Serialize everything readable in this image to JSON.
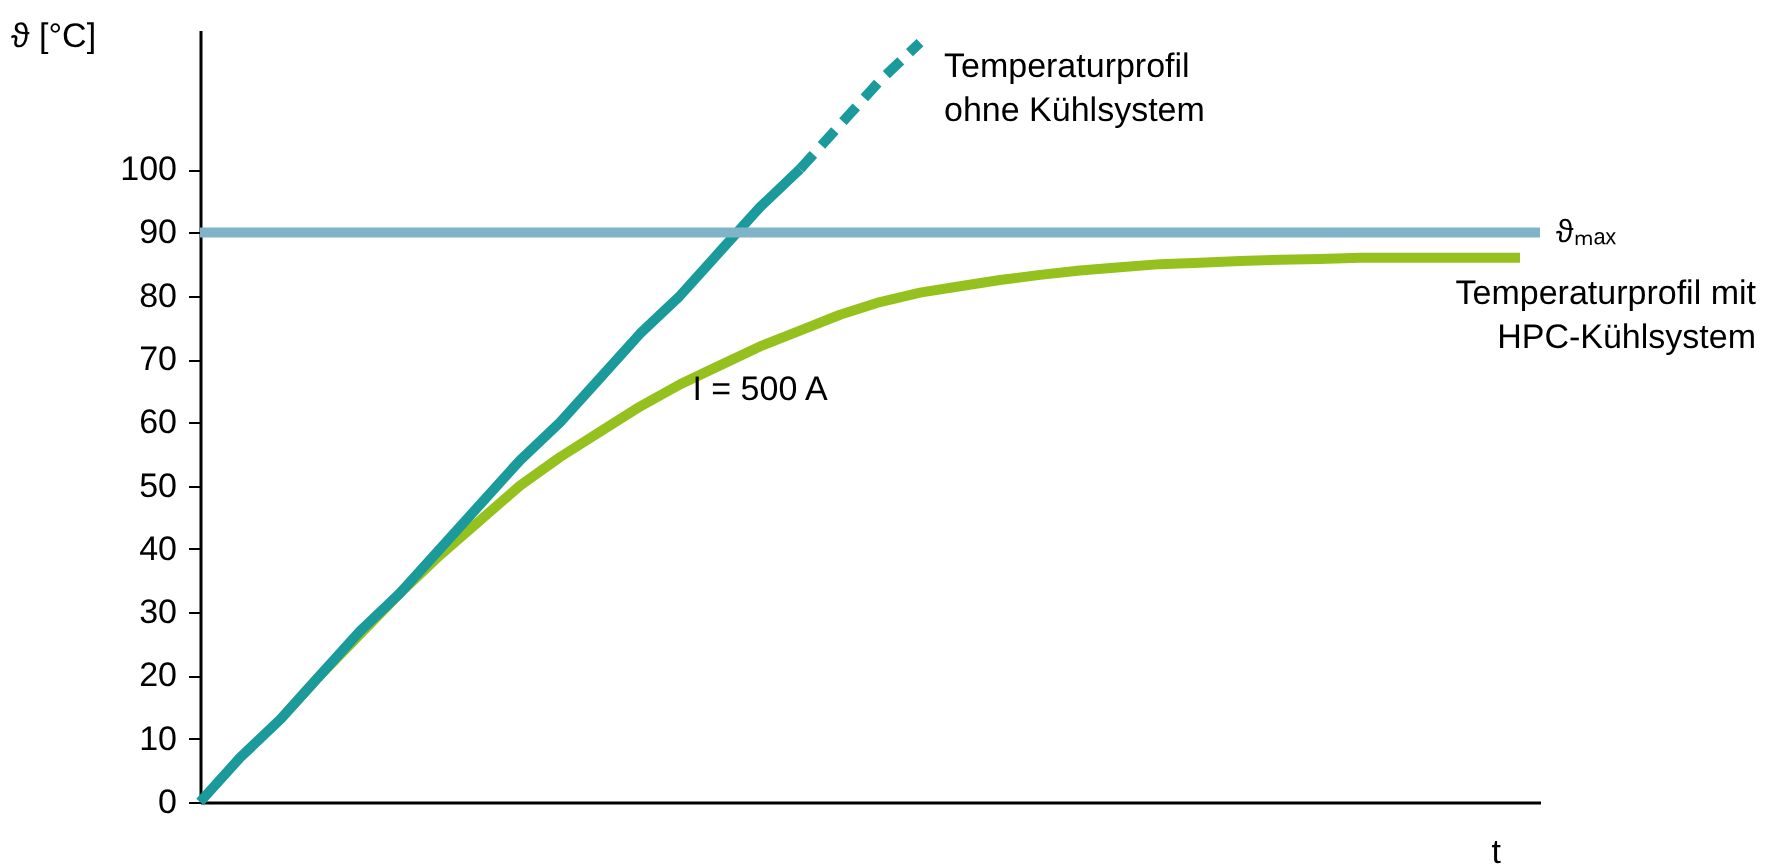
{
  "chart_data": {
    "type": "line",
    "ylabel": "ϑ [°C]",
    "xlabel": "t",
    "categories": [
      null,
      null,
      null,
      null,
      null,
      null,
      null,
      null,
      null,
      null,
      null,
      null,
      null,
      null,
      null,
      null,
      null,
      null,
      null,
      null,
      null,
      null,
      null,
      null,
      null,
      null,
      null,
      null,
      null,
      null,
      null,
      null,
      null,
      null
    ],
    "ylim": [
      0,
      122
    ],
    "yticks": [
      0,
      10,
      20,
      30,
      40,
      50,
      60,
      70,
      80,
      90,
      100
    ],
    "tick_labels": "y",
    "grid": false,
    "marker": "none",
    "series": [
      {
        "name": "Temperaturprofil mit HPC-Kühlsystem",
        "color": "#95c11f",
        "line_style": "solid",
        "values": [
          null,
          null,
          13,
          20,
          26.5,
          33,
          39,
          44.5,
          50,
          54.5,
          58.5,
          62.5,
          66,
          69,
          72,
          74.5,
          77,
          79,
          80.5,
          81.5,
          82.5,
          83.3,
          84,
          84.5,
          85,
          85.2,
          85.5,
          85.7,
          85.8,
          86,
          86,
          86,
          86,
          86
        ]
      },
      {
        "color": "#1a9a9a",
        "line_style": "solid",
        "values": [
          0,
          7,
          13,
          20,
          27,
          33,
          40,
          47,
          54,
          60,
          67,
          74,
          80,
          87,
          94,
          100,
          null,
          null,
          null,
          null,
          null,
          null,
          null,
          null,
          null,
          null,
          null,
          null,
          null,
          null,
          null,
          null,
          null,
          null
        ]
      },
      {
        "name": "Temperaturprofil ohne Kühlsystem",
        "color": "#1a9a9a",
        "line_style": "dashed",
        "values": [
          null,
          null,
          null,
          null,
          null,
          null,
          null,
          null,
          null,
          null,
          null,
          null,
          null,
          null,
          null,
          100,
          107,
          114,
          120,
          null,
          null,
          null,
          null,
          null,
          null,
          null,
          null,
          null,
          null,
          null,
          null,
          null,
          null,
          null
        ]
      }
    ],
    "ref_lines": [
      {
        "axis": "y",
        "value": 90,
        "label": "ϑₘₐₓ",
        "color": "#7fb3c8"
      }
    ],
    "annotations": [
      "I = 500 A"
    ]
  }
}
